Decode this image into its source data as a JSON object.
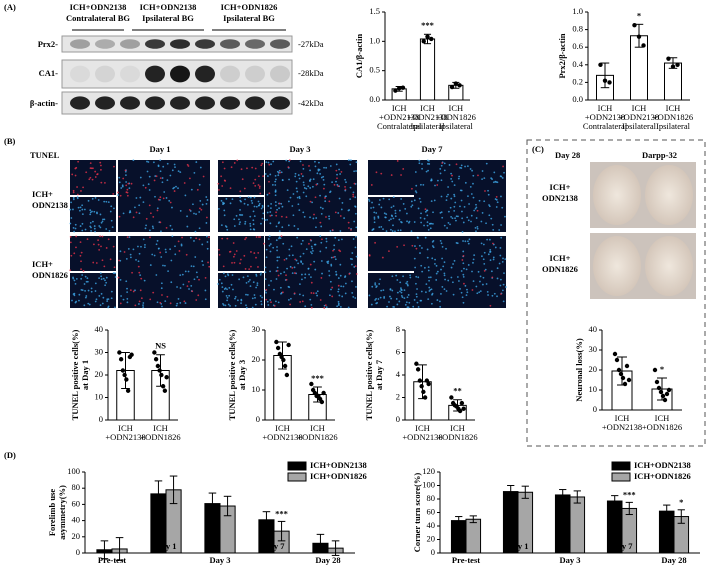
{
  "panel_labels": [
    "(A)",
    "(B)",
    "(C)",
    "(D)"
  ],
  "blot": {
    "columns": [
      [
        "ICH+ODN2138",
        "Contralateral BG"
      ],
      [
        "ICH+ODN2138",
        "Ipsilateral BG"
      ],
      [
        "ICH+ODN1826",
        "Ipsilateral BG"
      ]
    ],
    "rows": [
      "Prx2-",
      "CA1-",
      "β-actin-"
    ],
    "sizes": [
      "-27kDa",
      "-28kDa",
      "-42kDa"
    ]
  },
  "tunel": {
    "stain": "TUNEL",
    "days": [
      "Day 1",
      "Day 3",
      "Day 7"
    ],
    "groups": [
      [
        "ICH+",
        "ODN2138"
      ],
      [
        "ICH+",
        "ODN1826"
      ]
    ]
  },
  "darpp": {
    "day": "Day 28",
    "stain": "Darpp-32",
    "groups": [
      [
        "ICH+",
        "ODN2138"
      ],
      [
        "ICH+",
        "ODN1826"
      ]
    ]
  },
  "chart_data": [
    {
      "type": "bar",
      "ylabel": [
        "CA1/β-actin"
      ],
      "categories": [
        [
          "ICH",
          "+ODN2138",
          "Contralateral"
        ],
        [
          "ICH",
          "+ODN2138",
          "Ipsilateral"
        ],
        [
          "ICH",
          "+ODN1826",
          "Ipsilateral"
        ]
      ],
      "values": [
        0.19,
        1.04,
        0.25
      ],
      "errors": [
        0.04,
        0.08,
        0.05
      ],
      "points": [
        [
          0.16,
          0.2,
          0.21
        ],
        [
          1.0,
          1.08,
          1.04
        ],
        [
          0.22,
          0.28,
          0.25
        ]
      ],
      "color": "#ffffff",
      "ylim": [
        0,
        1.5
      ],
      "yticks": [
        {
          "value": 0,
          "label": "0.0"
        },
        {
          "value": 0.5,
          "label": "0.5"
        },
        {
          "value": 1,
          "label": "1.0"
        },
        {
          "value": 1.5,
          "label": "1.5"
        }
      ],
      "annotations": [
        "***"
      ]
    },
    {
      "type": "bar",
      "ylabel": [
        "Prx2/β-actin"
      ],
      "categories": [
        [
          "ICH",
          "+ODN2138",
          "Contralateral"
        ],
        [
          "ICH",
          "+ODN2138",
          "Ipsilateral"
        ],
        [
          "ICH",
          "+ODN1826",
          "Ipsilateral"
        ]
      ],
      "values": [
        0.28,
        0.73,
        0.42
      ],
      "errors": [
        0.14,
        0.13,
        0.06
      ],
      "points": [
        [
          0.4,
          0.22,
          0.2
        ],
        [
          0.85,
          0.72,
          0.62
        ],
        [
          0.47,
          0.38,
          0.4
        ]
      ],
      "color": "#ffffff",
      "ylim": [
        0,
        1
      ],
      "yticks": [
        {
          "value": 0,
          "label": "0.0"
        },
        {
          "value": 0.2,
          "label": "0.2"
        },
        {
          "value": 0.4,
          "label": "0.4"
        },
        {
          "value": 0.6,
          "label": "0.6"
        },
        {
          "value": 0.8,
          "label": "0.8"
        },
        {
          "value": 1,
          "label": "1.0"
        }
      ],
      "annotations": [
        "*"
      ]
    },
    {
      "type": "bar",
      "ylabel": [
        "TUNEL positive cells(%)",
        "at Day 1"
      ],
      "categories": [
        [
          "ICH",
          "+ODN2138"
        ],
        [
          "ICH",
          "+ODN1826"
        ]
      ],
      "values": [
        22,
        22
      ],
      "errors": [
        8,
        7
      ],
      "points": [
        [
          30,
          27,
          22,
          20,
          18,
          13,
          28,
          29
        ],
        [
          30,
          27,
          24,
          22,
          20,
          15,
          13,
          19
        ]
      ],
      "color": "#ffffff",
      "ylim": [
        0,
        40
      ],
      "yticks": [
        0,
        10,
        20,
        30,
        40
      ],
      "annotations": [
        "NS"
      ]
    },
    {
      "type": "bar",
      "ylabel": [
        "TUNEL positive cells(%)",
        "at Day 3"
      ],
      "categories": [
        [
          "ICH",
          "+ODN2138"
        ],
        [
          "ICH",
          "+ODN1826"
        ]
      ],
      "values": [
        21.5,
        8.5
      ],
      "errors": [
        4.5,
        2.5
      ],
      "points": [
        [
          26,
          24,
          22,
          21,
          20,
          18,
          15,
          25
        ],
        [
          12,
          10,
          9,
          8,
          8,
          7,
          6,
          9
        ]
      ],
      "color": "#ffffff",
      "ylim": [
        0,
        30
      ],
      "yticks": [
        0,
        10,
        20,
        30
      ],
      "annotations": [
        "***"
      ]
    },
    {
      "type": "bar",
      "ylabel": [
        "TUNEL positive cells(%)",
        "at Day 7"
      ],
      "categories": [
        [
          "ICH",
          "+ODN2138"
        ],
        [
          "ICH",
          "+ODN1826"
        ]
      ],
      "values": [
        3.4,
        1.3
      ],
      "errors": [
        1.5,
        0.5
      ],
      "points": [
        [
          5,
          4.5,
          3.5,
          3,
          2.5,
          2,
          3.5,
          3.2
        ],
        [
          2,
          1.5,
          1.3,
          1.2,
          1,
          0.8,
          1.5,
          1
        ]
      ],
      "color": "#ffffff",
      "ylim": [
        0,
        8
      ],
      "yticks": [
        0,
        2,
        4,
        6,
        8
      ],
      "annotations": [
        "**"
      ]
    },
    {
      "type": "bar",
      "ylabel": [
        "Neuronal loss(%)"
      ],
      "categories": [
        [
          "ICH",
          "+ODN2138"
        ],
        [
          "ICH",
          "+ODN1826"
        ]
      ],
      "values": [
        19.5,
        10.5
      ],
      "errors": [
        7,
        5.5
      ],
      "points": [
        [
          28,
          25,
          20,
          18,
          16,
          13,
          22,
          15
        ],
        [
          20,
          14,
          11,
          9,
          7,
          5,
          8,
          10
        ]
      ],
      "color": "#ffffff",
      "ylim": [
        0,
        40
      ],
      "yticks": [
        0,
        10,
        20,
        30,
        40
      ],
      "annotations": [
        "*"
      ]
    },
    {
      "type": "grouped_bar",
      "ylabel": [
        "Forelimb use",
        "asymmetry(%)"
      ],
      "categories": [
        "Pre-test",
        "Day 1",
        "Day 3",
        "Day 7",
        "Day 28"
      ],
      "series": [
        {
          "name": "ICH+ODN2138",
          "color": "#000000",
          "values": [
            4,
            73,
            61,
            41,
            12
          ],
          "errors": [
            11,
            16,
            13,
            10,
            11
          ]
        },
        {
          "name": "ICH+ODN1826",
          "color": "#a6a6a6",
          "values": [
            5,
            78,
            58,
            27,
            6
          ],
          "errors": [
            14,
            17,
            12,
            12,
            9
          ]
        }
      ],
      "ylim": [
        0,
        100
      ],
      "yticks": [
        0,
        20,
        40,
        60,
        80,
        100
      ],
      "annotations": [
        "***"
      ]
    },
    {
      "type": "grouped_bar",
      "ylabel": [
        "Corner turn score(%)"
      ],
      "categories": [
        "Pre-test",
        "Day 1",
        "Day 3",
        "Day 7",
        "Day 28"
      ],
      "series": [
        {
          "name": "ICH+ODN2138",
          "color": "#000000",
          "values": [
            48,
            91,
            86,
            77,
            62
          ],
          "errors": [
            6,
            9,
            8,
            8,
            9
          ]
        },
        {
          "name": "ICH+ODN1826",
          "color": "#a6a6a6",
          "values": [
            50,
            90,
            83,
            66,
            54
          ],
          "errors": [
            5,
            9,
            9,
            9,
            10
          ]
        }
      ],
      "ylim": [
        0,
        120
      ],
      "yticks": [
        0,
        20,
        40,
        60,
        80,
        100,
        120
      ],
      "annotations": [
        "***",
        "*"
      ]
    }
  ]
}
